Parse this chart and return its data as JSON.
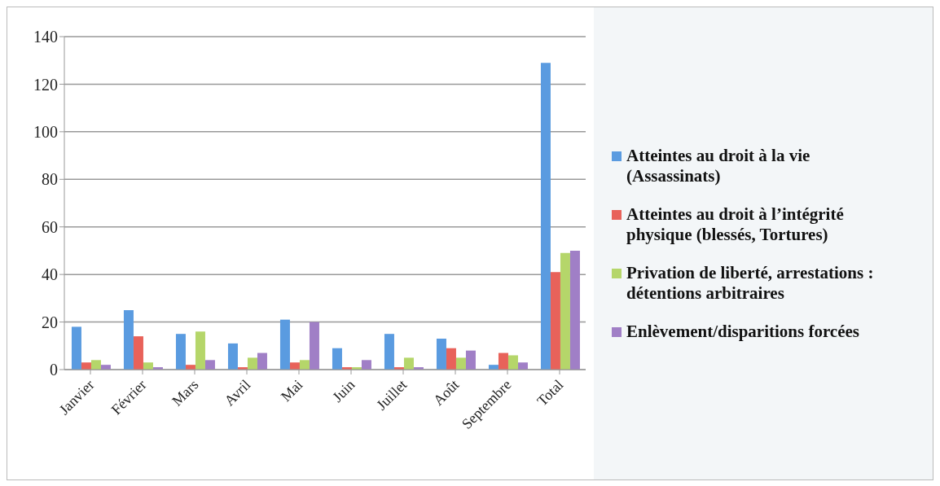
{
  "chart_data": {
    "type": "bar",
    "categories": [
      "Janvier",
      "Février",
      "Mars",
      "Avril",
      "Mai",
      "Juin",
      "Juillet",
      "Août",
      "Septembre",
      "Total"
    ],
    "series": [
      {
        "name": "Atteintes au droit à la vie (Assassinats)",
        "color": "#5a9be0",
        "values": [
          18,
          25,
          15,
          11,
          21,
          9,
          15,
          13,
          2,
          129
        ]
      },
      {
        "name": "Atteintes au droit à l’intégrité physique (blessés, Tortures)",
        "color": "#e8625a",
        "values": [
          3,
          14,
          2,
          1,
          3,
          1,
          1,
          9,
          7,
          41
        ]
      },
      {
        "name": "Privation de liberté, arrestations : détentions arbitraires",
        "color": "#b5d66a",
        "values": [
          4,
          3,
          16,
          5,
          4,
          1,
          5,
          5,
          6,
          49
        ]
      },
      {
        "name": "Enlèvement/disparitions forcées",
        "color": "#a07fc6",
        "values": [
          2,
          1,
          4,
          7,
          20,
          4,
          1,
          8,
          3,
          50
        ]
      }
    ],
    "ylim": [
      0,
      140
    ],
    "yticks": [
      0,
      20,
      40,
      60,
      80,
      100,
      120,
      140
    ],
    "grid": "y",
    "legend": "right"
  }
}
